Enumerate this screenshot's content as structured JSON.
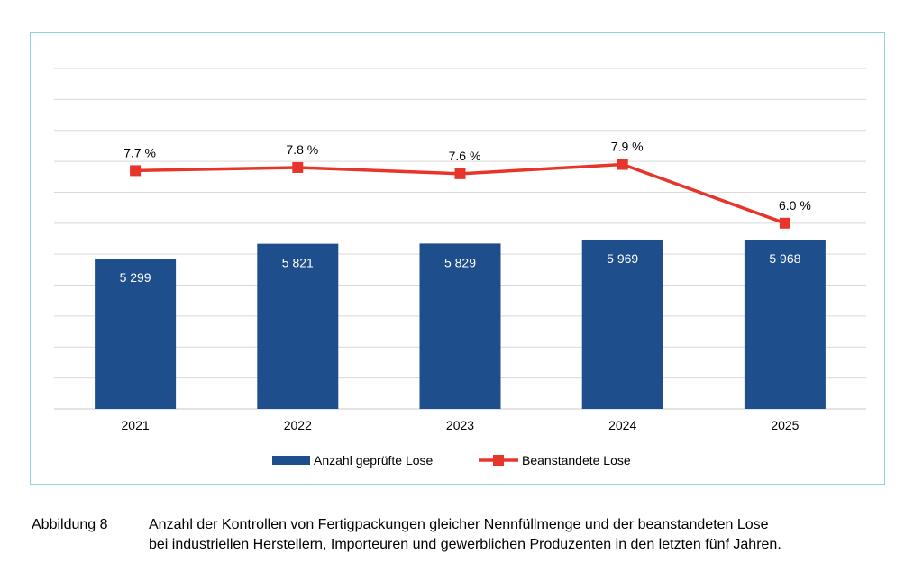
{
  "chart_data": {
    "type": "bar+line",
    "categories": [
      "2021",
      "2022",
      "2023",
      "2024",
      "2025"
    ],
    "series": [
      {
        "name": "Anzahl geprüfte Lose",
        "type": "bar",
        "values": [
          5299,
          5821,
          5829,
          5969,
          5968
        ],
        "labels": [
          "5 299",
          "5 821",
          "5 829",
          "5 969",
          "5 968"
        ],
        "color": "#1f4e8c"
      },
      {
        "name": "Beanstandete Lose",
        "type": "line",
        "values": [
          7.7,
          7.8,
          7.6,
          7.9,
          6.0
        ],
        "labels": [
          "7.7 %",
          "7.8 %",
          "7.6 %",
          "7.9 %",
          "6.0 %"
        ],
        "color": "#e8352b"
      }
    ],
    "bar_axis_range": [
      0,
      12000
    ],
    "line_axis_range": [
      0,
      11
    ],
    "grid": true,
    "legend_position": "bottom"
  },
  "caption": {
    "number": "Abbildung 8",
    "lines": [
      "Anzahl der Kontrollen von Fertigpackungen gleicher Nennfüllmenge und der beanstandeten Lose",
      "bei industriellen Herstellern, Importeuren und gewerblichen Produzenten in den letzten fünf Jahren."
    ]
  }
}
